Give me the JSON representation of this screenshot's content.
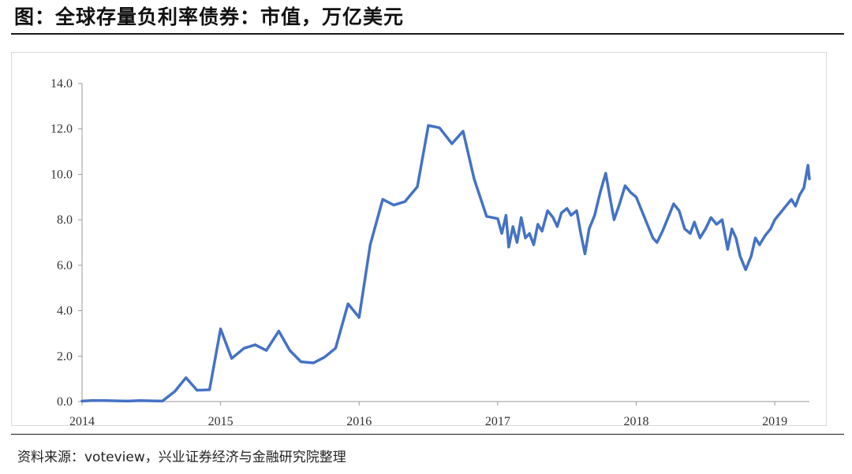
{
  "figure": {
    "title": "图：全球存量负利率债券：市值，万亿美元",
    "source": "资料来源：voteview，兴业证券经济与金融研究院整理"
  },
  "chart_data": {
    "type": "line",
    "title": "图：全球存量负利率债券：市值，万亿美元",
    "xlabel": "",
    "ylabel": "",
    "ylim": [
      0,
      14
    ],
    "xlim": [
      2014.0,
      2019.25
    ],
    "y_ticks": [
      "0.0",
      "2.0",
      "4.0",
      "6.0",
      "8.0",
      "10.0",
      "12.0",
      "14.0"
    ],
    "x_ticks": [
      "2014",
      "2015",
      "2016",
      "2017",
      "2018",
      "2019"
    ],
    "grid": false,
    "legend": "none",
    "line_color": "#4472c4",
    "series": [
      {
        "values_xy": [
          [
            2014.0,
            0.02
          ],
          [
            2014.08,
            0.05
          ],
          [
            2014.17,
            0.04
          ],
          [
            2014.25,
            0.03
          ],
          [
            2014.33,
            0.02
          ],
          [
            2014.42,
            0.04
          ],
          [
            2014.5,
            0.03
          ],
          [
            2014.58,
            0.02
          ],
          [
            2014.67,
            0.45
          ],
          [
            2014.75,
            1.05
          ],
          [
            2014.83,
            0.5
          ],
          [
            2014.92,
            0.52
          ],
          [
            2015.0,
            3.2
          ],
          [
            2015.08,
            1.9
          ],
          [
            2015.17,
            2.35
          ],
          [
            2015.25,
            2.5
          ],
          [
            2015.33,
            2.25
          ],
          [
            2015.42,
            3.1
          ],
          [
            2015.5,
            2.25
          ],
          [
            2015.58,
            1.75
          ],
          [
            2015.67,
            1.7
          ],
          [
            2015.75,
            1.95
          ],
          [
            2015.83,
            2.35
          ],
          [
            2015.92,
            4.3
          ],
          [
            2016.0,
            3.7
          ],
          [
            2016.08,
            6.9
          ],
          [
            2016.17,
            8.9
          ],
          [
            2016.25,
            8.65
          ],
          [
            2016.33,
            8.8
          ],
          [
            2016.42,
            9.45
          ],
          [
            2016.5,
            12.15
          ],
          [
            2016.58,
            12.05
          ],
          [
            2016.67,
            11.35
          ],
          [
            2016.75,
            11.9
          ],
          [
            2016.83,
            9.8
          ],
          [
            2016.92,
            8.15
          ],
          [
            2017.0,
            8.05
          ],
          [
            2017.03,
            7.4
          ],
          [
            2017.06,
            8.2
          ],
          [
            2017.08,
            6.8
          ],
          [
            2017.11,
            7.7
          ],
          [
            2017.14,
            7.0
          ],
          [
            2017.17,
            8.1
          ],
          [
            2017.2,
            7.2
          ],
          [
            2017.23,
            7.4
          ],
          [
            2017.26,
            6.9
          ],
          [
            2017.29,
            7.8
          ],
          [
            2017.32,
            7.5
          ],
          [
            2017.36,
            8.4
          ],
          [
            2017.4,
            8.1
          ],
          [
            2017.43,
            7.7
          ],
          [
            2017.46,
            8.3
          ],
          [
            2017.5,
            8.5
          ],
          [
            2017.53,
            8.2
          ],
          [
            2017.57,
            8.4
          ],
          [
            2017.6,
            7.4
          ],
          [
            2017.63,
            6.5
          ],
          [
            2017.66,
            7.6
          ],
          [
            2017.7,
            8.2
          ],
          [
            2017.74,
            9.2
          ],
          [
            2017.78,
            10.05
          ],
          [
            2017.81,
            9.0
          ],
          [
            2017.84,
            8.0
          ],
          [
            2017.88,
            8.7
          ],
          [
            2017.92,
            9.5
          ],
          [
            2017.96,
            9.2
          ],
          [
            2018.0,
            9.0
          ],
          [
            2018.04,
            8.4
          ],
          [
            2018.08,
            7.8
          ],
          [
            2018.12,
            7.2
          ],
          [
            2018.15,
            7.0
          ],
          [
            2018.19,
            7.5
          ],
          [
            2018.23,
            8.1
          ],
          [
            2018.27,
            8.7
          ],
          [
            2018.31,
            8.4
          ],
          [
            2018.35,
            7.6
          ],
          [
            2018.39,
            7.4
          ],
          [
            2018.42,
            7.9
          ],
          [
            2018.46,
            7.2
          ],
          [
            2018.5,
            7.6
          ],
          [
            2018.54,
            8.1
          ],
          [
            2018.58,
            7.8
          ],
          [
            2018.62,
            8.0
          ],
          [
            2018.66,
            6.7
          ],
          [
            2018.69,
            7.6
          ],
          [
            2018.72,
            7.2
          ],
          [
            2018.75,
            6.4
          ],
          [
            2018.79,
            5.8
          ],
          [
            2018.83,
            6.4
          ],
          [
            2018.86,
            7.2
          ],
          [
            2018.89,
            6.9
          ],
          [
            2018.93,
            7.3
          ],
          [
            2018.97,
            7.6
          ],
          [
            2019.0,
            8.0
          ],
          [
            2019.04,
            8.3
          ],
          [
            2019.08,
            8.6
          ],
          [
            2019.12,
            8.9
          ],
          [
            2019.15,
            8.6
          ],
          [
            2019.18,
            9.1
          ],
          [
            2019.21,
            9.4
          ],
          [
            2019.24,
            10.4
          ],
          [
            2019.25,
            9.8
          ]
        ]
      }
    ]
  }
}
